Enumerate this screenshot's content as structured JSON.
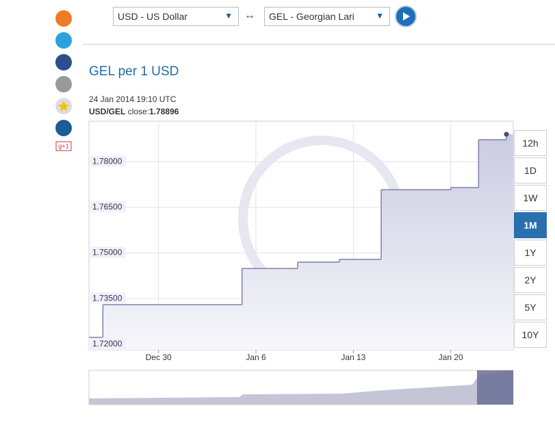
{
  "ui": {
    "from_currency": "USD - US Dollar",
    "to_currency": "GEL - Georgian Lari",
    "swap_symbol": "↔",
    "heading": "GEL per 1 USD",
    "timestamp": "24 Jan 2014 19:10 UTC",
    "pair_label": "USD/GEL",
    "close_label": "close:",
    "close_value": "1.78896",
    "ranges": [
      "12h",
      "1D",
      "1W",
      "1M",
      "1Y",
      "2Y",
      "5Y",
      "10Y"
    ],
    "active_range": "1M",
    "google_plus": "g+1"
  },
  "chart_data": {
    "type": "line",
    "step": true,
    "color": "#7c80a8",
    "fill": "#c9cbe0",
    "x": [
      "Dec 25",
      "Dec 26",
      "Dec 27",
      "Dec 28",
      "Dec 29",
      "Dec 30",
      "Dec 31",
      "Jan 1",
      "Jan 2",
      "Jan 3",
      "Jan 4",
      "Jan 5",
      "Jan 6",
      "Jan 7",
      "Jan 8",
      "Jan 9",
      "Jan 10",
      "Jan 11",
      "Jan 12",
      "Jan 13",
      "Jan 14",
      "Jan 15",
      "Jan 16",
      "Jan 17",
      "Jan 18",
      "Jan 19",
      "Jan 20",
      "Jan 21",
      "Jan 22",
      "Jan 23",
      "Jan 24"
    ],
    "values": [
      1.7223,
      1.733,
      1.733,
      1.733,
      1.733,
      1.733,
      1.733,
      1.733,
      1.733,
      1.733,
      1.733,
      1.7449,
      1.7449,
      1.7449,
      1.7449,
      1.747,
      1.747,
      1.747,
      1.7479,
      1.7479,
      1.7479,
      1.7708,
      1.7708,
      1.7708,
      1.7708,
      1.7708,
      1.7715,
      1.7715,
      1.7872,
      1.7872,
      1.789
    ],
    "xticks": [
      "Dec 30",
      "Jan 6",
      "Jan 13",
      "Jan 20"
    ],
    "ylim": [
      1.7182,
      1.7933
    ],
    "yticks": [
      {
        "value": 1.72,
        "label": "1.72000"
      },
      {
        "value": 1.735,
        "label": "1.73500"
      },
      {
        "value": 1.75,
        "label": "1.75000"
      },
      {
        "value": 1.765,
        "label": "1.76500"
      },
      {
        "value": 1.78,
        "label": "1.78000"
      }
    ],
    "grid": true
  }
}
